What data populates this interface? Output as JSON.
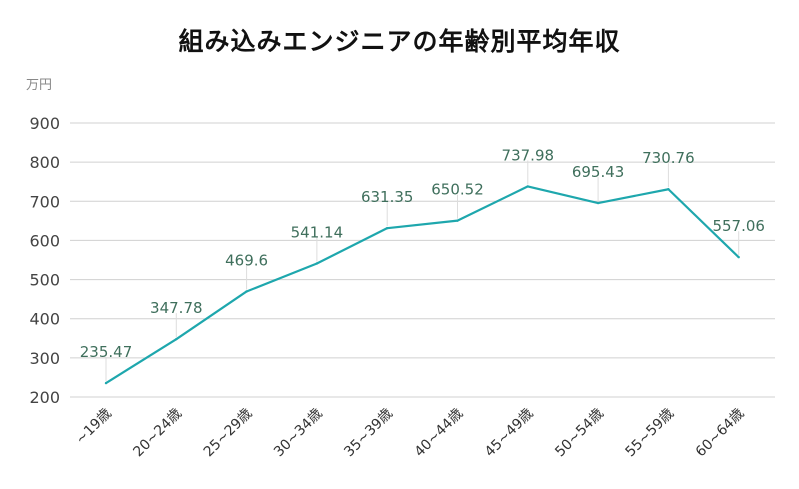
{
  "chart_data": {
    "type": "line",
    "title": "組み込みエンジニアの年齢別平均年収",
    "ylabel": "万円",
    "xlabel": "",
    "categories": [
      "~19歳",
      "20~24歳",
      "25~29歳",
      "30~34歳",
      "35~39歳",
      "40~44歳",
      "45~49歳",
      "50~54歳",
      "55~59歳",
      "60~64歳"
    ],
    "values": [
      235.47,
      347.78,
      469.6,
      541.14,
      631.35,
      650.52,
      737.98,
      695.43,
      730.76,
      557.06
    ],
    "data_labels": [
      "235.47",
      "347.78",
      "469.6",
      "541.14",
      "631.35",
      "650.52",
      "737.98",
      "695.43",
      "730.76",
      "557.06"
    ],
    "ylim": [
      200,
      900
    ],
    "yticks": [
      "200",
      "300",
      "400",
      "500",
      "600",
      "700",
      "800",
      "900"
    ],
    "grid": true,
    "colors": {
      "line": "#1ea7ad",
      "label": "#3f6f5c",
      "grid": "#d0d0d0"
    }
  }
}
